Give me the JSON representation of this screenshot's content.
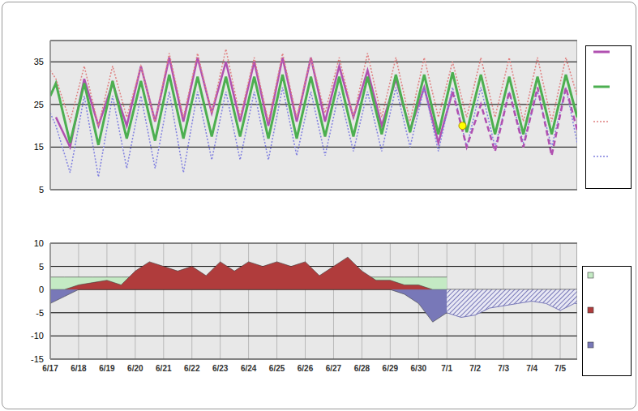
{
  "chart_data": [
    {
      "type": "line",
      "x": [
        0,
        0.2,
        0.7,
        1.2,
        1.7,
        2.2,
        2.7,
        3.2,
        3.7,
        4.2,
        4.7,
        5.2,
        5.7,
        6.2,
        6.7,
        7.2,
        7.7,
        8.2,
        8.7,
        9.2,
        9.7,
        10.2,
        10.7,
        11.2,
        11.7,
        12.2,
        12.7,
        13.2,
        13.7,
        14.2,
        14.7,
        15.2,
        15.7,
        16.2,
        16.7,
        17.2,
        17.7,
        18.2,
        18.6
      ],
      "xlim": [
        0,
        18.6
      ],
      "xticks": [
        {
          "value": 0,
          "label": "6/17"
        },
        {
          "value": 1,
          "label": "6/18"
        },
        {
          "value": 2,
          "label": "6/19"
        },
        {
          "value": 3,
          "label": "6/20"
        },
        {
          "value": 4,
          "label": "6/21"
        },
        {
          "value": 5,
          "label": "6/22"
        },
        {
          "value": 6,
          "label": "6/23"
        },
        {
          "value": 7,
          "label": "6/24"
        },
        {
          "value": 8,
          "label": "6/25"
        },
        {
          "value": 9,
          "label": "6/26"
        },
        {
          "value": 10,
          "label": "6/27"
        },
        {
          "value": 11,
          "label": "6/28"
        },
        {
          "value": 12,
          "label": "6/29"
        },
        {
          "value": 13,
          "label": "6/30"
        },
        {
          "value": 14,
          "label": "7/1"
        },
        {
          "value": 15,
          "label": "7/2"
        },
        {
          "value": 16,
          "label": "7/3"
        },
        {
          "value": 17,
          "label": "7/4"
        },
        {
          "value": 18,
          "label": "7/5"
        }
      ],
      "ylim": [
        5,
        40
      ],
      "yticks": [
        5,
        15,
        25,
        35
      ],
      "grid": true,
      "tick_labels": "y",
      "series": [
        {
          "color": "#b050b0",
          "line_style": "solid",
          "values": [
            null,
            22,
            15,
            31,
            20,
            30,
            20,
            34,
            21,
            36,
            21,
            36,
            23,
            35,
            21,
            35,
            20,
            36,
            21,
            36,
            21,
            34,
            22,
            33,
            20,
            31,
            19,
            29,
            16,
            28,
            null,
            null,
            null,
            null,
            null,
            null,
            null,
            null,
            null
          ]
        },
        {
          "color": "#4caf50",
          "line_style": "solid",
          "values": [
            27,
            30,
            16,
            30,
            15.5,
            30.5,
            17,
            30.5,
            16.5,
            32,
            17,
            31.5,
            17.5,
            31.5,
            17.5,
            31.5,
            17,
            32,
            17,
            31.5,
            17.5,
            31.5,
            17.5,
            31.5,
            18,
            32,
            18.5,
            32,
            18,
            32.5,
            18.5,
            32,
            18,
            31.5,
            18,
            31.5,
            18,
            32,
            22
          ]
        },
        {
          "color": "#e08080",
          "line_style": "dotted",
          "values": [
            33,
            31,
            21,
            34,
            20,
            34,
            22,
            34,
            21,
            37,
            22,
            37,
            23,
            38,
            22,
            36,
            21,
            37,
            22,
            36,
            23,
            36,
            22,
            37,
            22,
            36,
            21,
            36,
            22,
            35,
            22,
            36,
            22,
            36,
            21,
            36,
            21,
            36,
            27
          ]
        },
        {
          "color": "#8080e0",
          "line_style": "dotted",
          "values": [
            23,
            20,
            9,
            27,
            8,
            27,
            10,
            27,
            10,
            28,
            9,
            28,
            12,
            28,
            12,
            28,
            12,
            29,
            13,
            28,
            13,
            28,
            14,
            28,
            14,
            29,
            15,
            29,
            14,
            29,
            15,
            29,
            15,
            28,
            16,
            28,
            15,
            29,
            16
          ]
        },
        {
          "color": "#b050b0",
          "line_style": "dashed",
          "values": [
            null,
            null,
            null,
            null,
            null,
            null,
            null,
            null,
            null,
            null,
            null,
            null,
            null,
            null,
            null,
            null,
            null,
            null,
            null,
            null,
            null,
            null,
            null,
            null,
            null,
            null,
            null,
            null,
            null,
            28,
            15,
            25,
            14,
            28,
            15,
            29,
            13,
            29,
            19
          ]
        },
        {
          "type": "scatter",
          "marker": "circle",
          "color": "#ffff00",
          "x": [
            14.55
          ],
          "values": [
            20
          ]
        }
      ]
    },
    {
      "type": "area",
      "x": [
        0,
        0.5,
        1,
        1.5,
        2,
        2.5,
        3,
        3.5,
        4,
        4.5,
        5,
        5.5,
        6,
        6.5,
        7,
        7.5,
        8,
        8.5,
        9,
        9.5,
        10,
        10.5,
        11,
        11.5,
        12,
        12.5,
        13,
        13.5,
        14,
        14.5,
        15,
        15.5,
        16,
        16.5,
        17,
        17.5,
        18,
        18.5,
        18.6
      ],
      "xlim": [
        0,
        18.6
      ],
      "xticks": [
        {
          "value": 0,
          "label": "6/17"
        },
        {
          "value": 1,
          "label": "6/18"
        },
        {
          "value": 2,
          "label": "6/19"
        },
        {
          "value": 3,
          "label": "6/20"
        },
        {
          "value": 4,
          "label": "6/21"
        },
        {
          "value": 5,
          "label": "6/22"
        },
        {
          "value": 6,
          "label": "6/23"
        },
        {
          "value": 7,
          "label": "6/24"
        },
        {
          "value": 8,
          "label": "6/25"
        },
        {
          "value": 9,
          "label": "6/26"
        },
        {
          "value": 10,
          "label": "6/27"
        },
        {
          "value": 11,
          "label": "6/28"
        },
        {
          "value": 12,
          "label": "6/29"
        },
        {
          "value": 13,
          "label": "6/30"
        },
        {
          "value": 14,
          "label": "7/1"
        },
        {
          "value": 15,
          "label": "7/2"
        },
        {
          "value": 16,
          "label": "7/3"
        },
        {
          "value": 17,
          "label": "7/4"
        },
        {
          "value": 18,
          "label": "7/5"
        }
      ],
      "ylim": [
        -15,
        10
      ],
      "yticks": [
        -15,
        -10,
        -5,
        0,
        5,
        10
      ],
      "grid": true,
      "series": [
        {
          "color": "#c4eac4",
          "line_style": "solid",
          "values": [
            2.7,
            2.7,
            2.7,
            2.7,
            2.7,
            2.7,
            2.7,
            2.7,
            2.7,
            2.7,
            2.7,
            2.7,
            2.7,
            2.7,
            2.7,
            2.7,
            2.7,
            2.7,
            2.7,
            2.7,
            2.7,
            2.7,
            2.7,
            2.7,
            2.7,
            2.7,
            2.7,
            2.7,
            2.7,
            null,
            null,
            null,
            null,
            null,
            null,
            null,
            null,
            null,
            null
          ]
        },
        {
          "color": "#b03c3c",
          "line_style": "solid",
          "values": [
            0,
            0,
            1,
            1.5,
            2,
            1,
            4,
            6,
            5,
            4,
            5,
            3,
            6,
            4,
            6,
            5,
            6,
            5,
            6,
            3,
            5,
            7,
            4,
            2,
            2,
            1,
            1,
            0,
            0,
            null,
            null,
            null,
            null,
            null,
            null,
            null,
            null,
            null,
            null
          ]
        },
        {
          "color": "#7878b8",
          "line_style": "solid",
          "values": [
            -3,
            -1.5,
            0,
            0,
            0,
            0,
            0,
            0,
            0,
            0,
            0,
            0,
            0,
            0,
            0,
            0,
            0,
            0,
            0,
            0,
            0,
            0,
            0,
            0,
            0,
            -1,
            -3,
            -7,
            -5,
            null,
            null,
            null,
            null,
            null,
            null,
            null,
            null,
            null,
            null
          ]
        },
        {
          "color": "#7878b8",
          "line_style": "hatched",
          "values": [
            null,
            null,
            null,
            null,
            null,
            null,
            null,
            null,
            null,
            null,
            null,
            null,
            null,
            null,
            null,
            null,
            null,
            null,
            null,
            null,
            null,
            null,
            null,
            null,
            null,
            null,
            null,
            null,
            -5,
            -6,
            -5.5,
            -4,
            -3.5,
            -3,
            -2.5,
            -3,
            -4.5,
            -3,
            -3
          ]
        }
      ]
    }
  ]
}
